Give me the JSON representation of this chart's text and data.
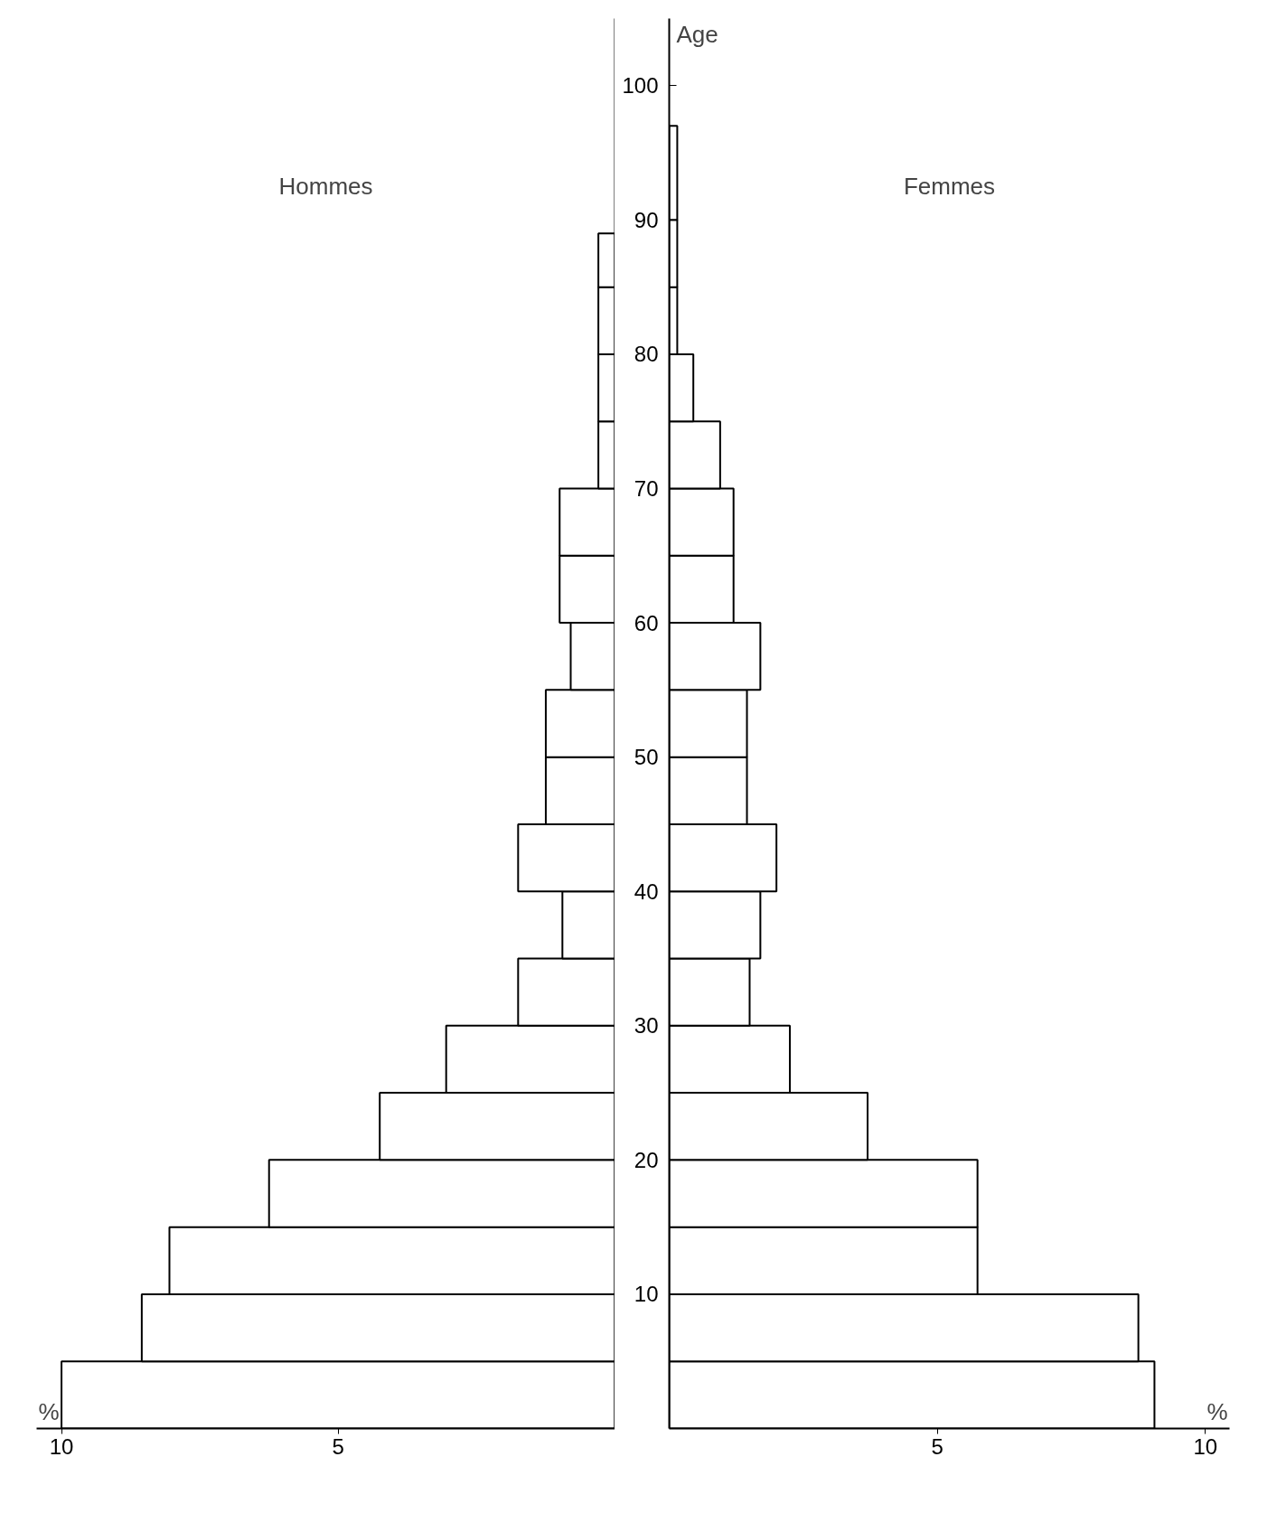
{
  "chart_data": [
    {
      "type": "histogram",
      "orientation": "horizontal",
      "xlabel": "%",
      "xlim": [
        10.45,
        0
      ],
      "xticks": [
        10,
        5
      ],
      "ylim": [
        0,
        105
      ],
      "yticks": [
        10,
        20,
        30,
        40,
        50,
        60,
        70,
        80,
        90,
        100
      ],
      "tick_labels": "x",
      "bins": [
        0,
        5,
        10,
        15,
        20,
        25,
        30,
        35,
        40,
        45,
        50,
        55,
        60,
        65,
        70,
        75,
        80,
        85,
        89
      ],
      "series": [
        {
          "name": "Hommes",
          "color": "#ffffff",
          "values": [
            10.0,
            8.55,
            8.05,
            6.25,
            4.25,
            3.05,
            1.75,
            0.95,
            1.75,
            1.25,
            1.25,
            0.8,
            1.0,
            1.0,
            0.3,
            0.3,
            0.3,
            0.3
          ]
        }
      ]
    },
    {
      "type": "histogram",
      "orientation": "horizontal",
      "xlabel": "%",
      "ylabel": "Age",
      "xlim": [
        0,
        10.45
      ],
      "xticks": [
        5,
        10
      ],
      "ylim": [
        0,
        105
      ],
      "yticks": [
        10,
        20,
        30,
        40,
        50,
        60,
        70,
        80,
        90,
        100
      ],
      "bins": [
        0,
        5,
        10,
        15,
        20,
        25,
        30,
        35,
        40,
        45,
        50,
        55,
        60,
        65,
        70,
        75,
        80,
        85,
        90,
        97
      ],
      "series": [
        {
          "name": "Femmes",
          "color": "#ffffff",
          "values": [
            9.05,
            8.75,
            5.75,
            5.75,
            3.7,
            2.25,
            1.5,
            1.7,
            2.0,
            1.45,
            1.45,
            1.7,
            1.2,
            1.2,
            0.95,
            0.45,
            0.15,
            0.15,
            0.15
          ]
        }
      ]
    }
  ]
}
